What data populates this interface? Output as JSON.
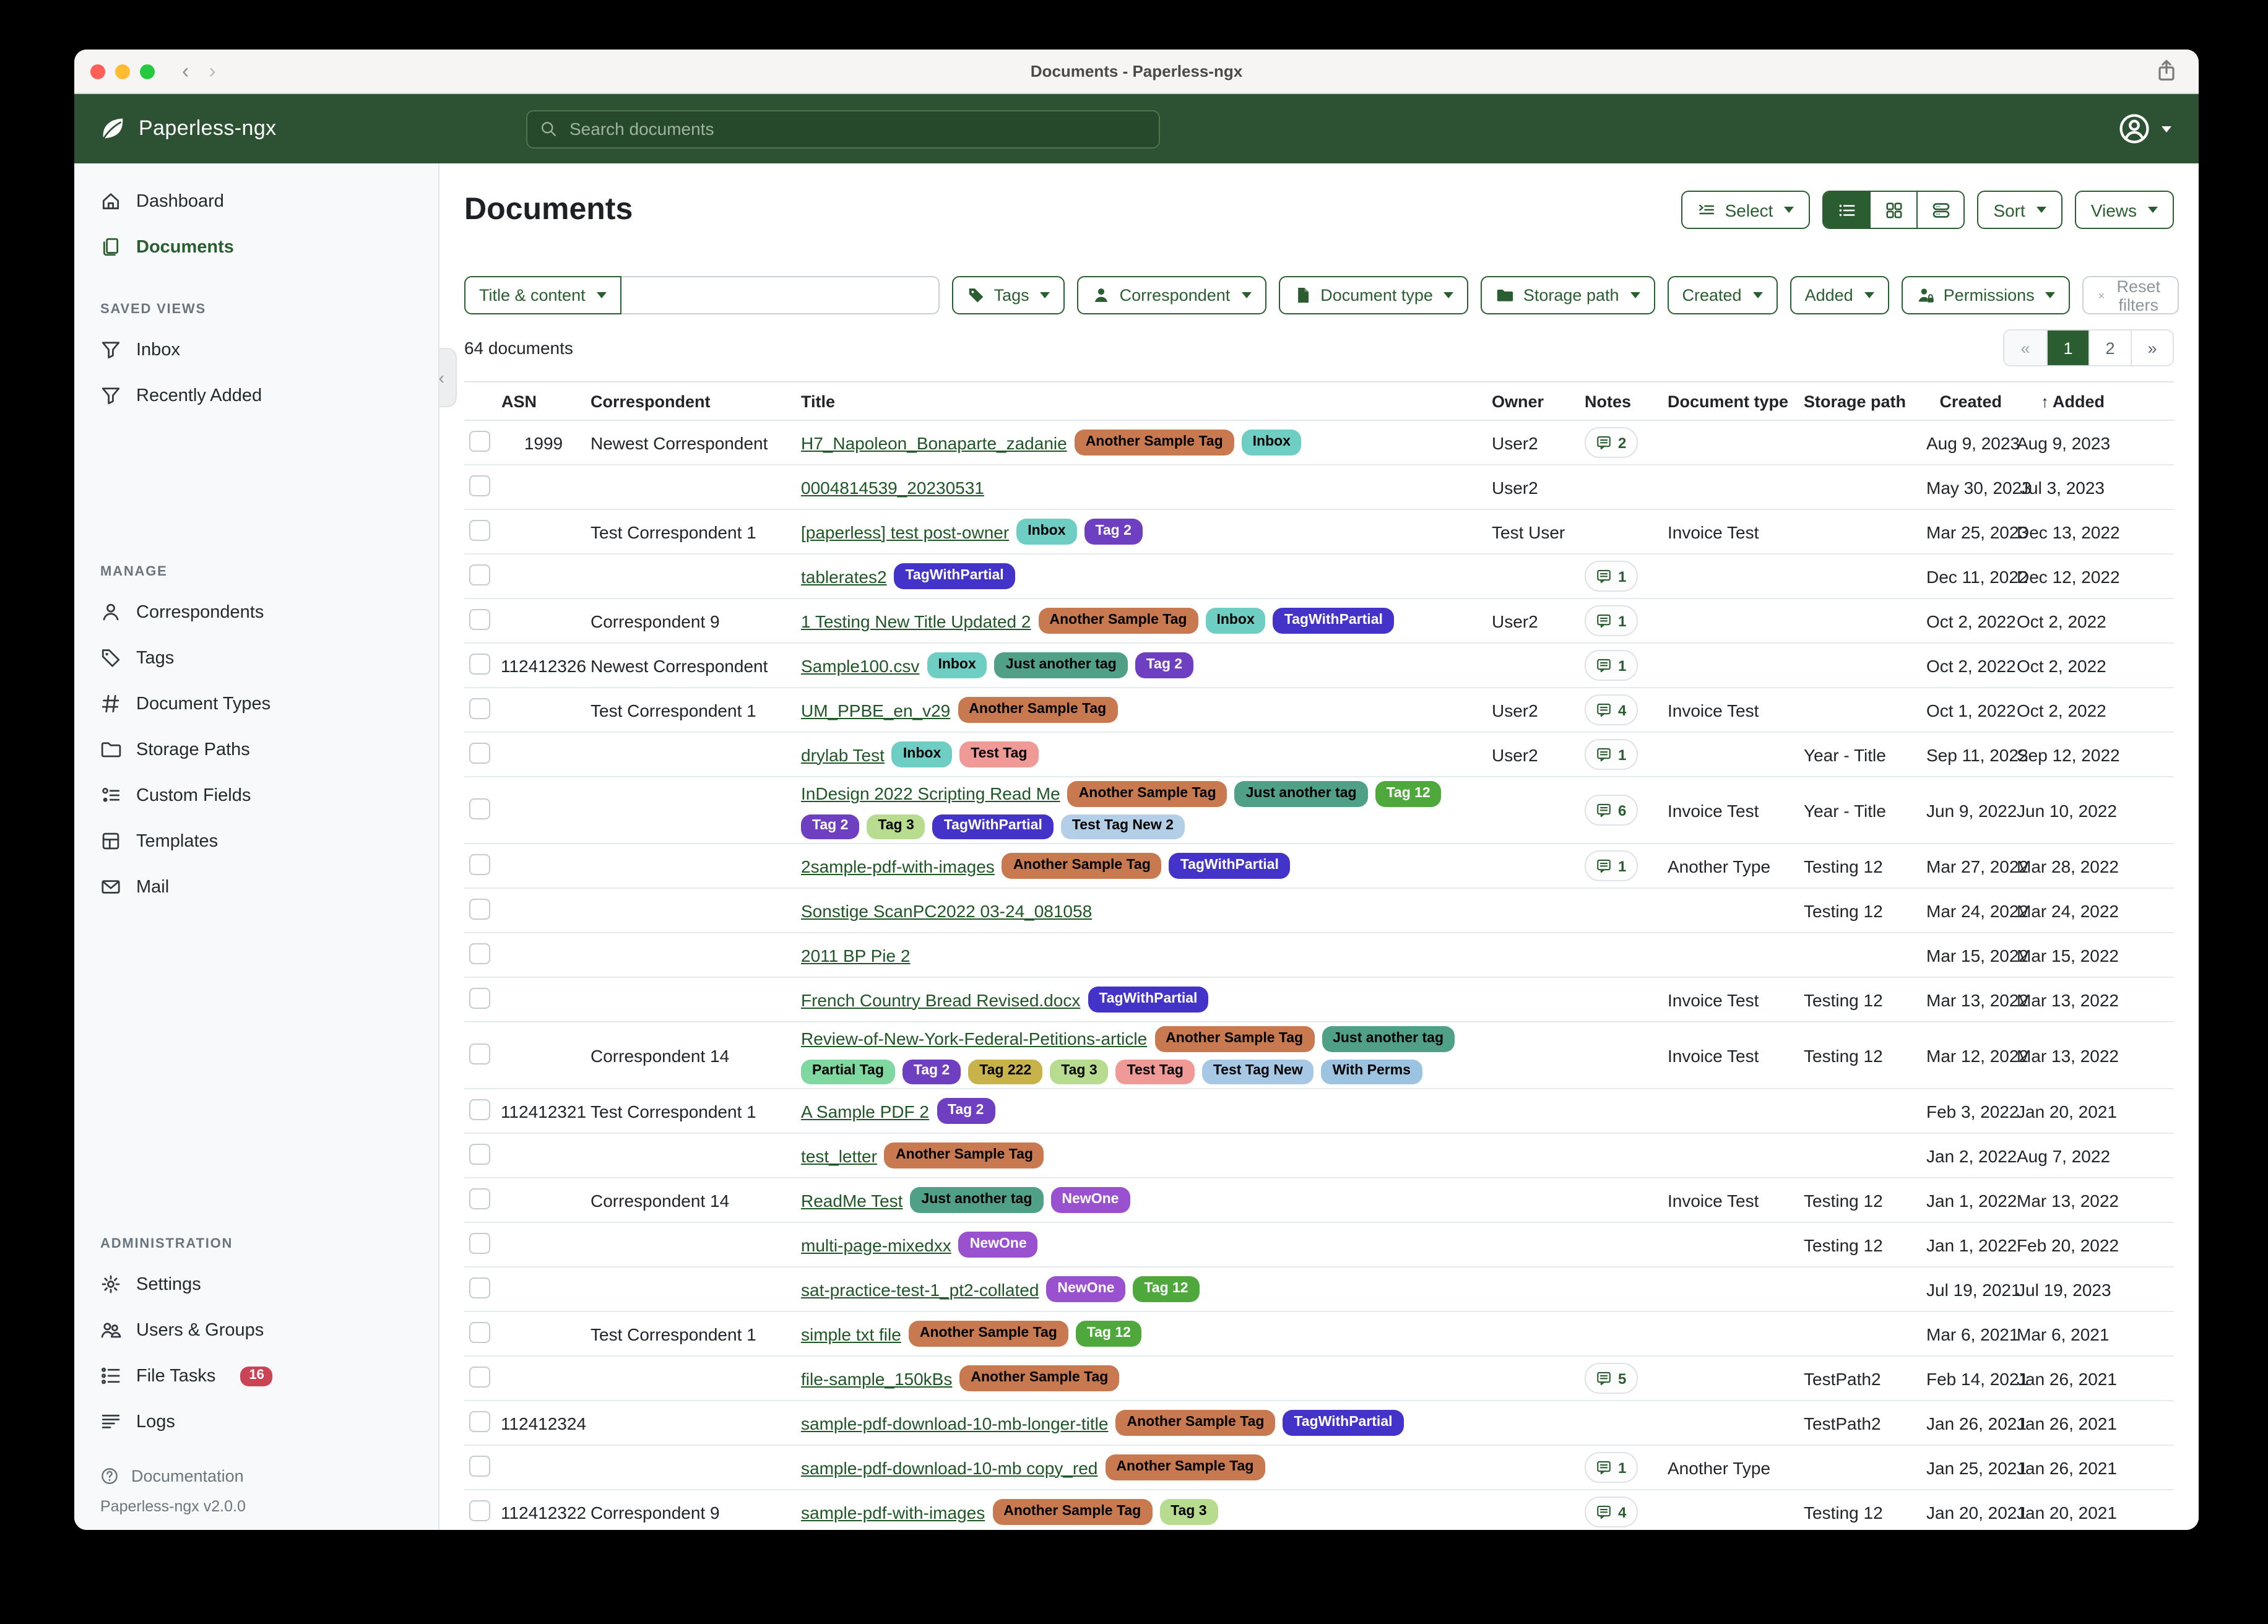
{
  "window": {
    "title": "Documents - Paperless-ngx"
  },
  "navbar": {
    "brand": "Paperless-ngx",
    "search_placeholder": "Search documents"
  },
  "sidebar": {
    "nav": [
      {
        "label": "Dashboard",
        "icon": "home-icon"
      },
      {
        "label": "Documents",
        "icon": "documents-icon",
        "active": true
      }
    ],
    "saved_views_label": "SAVED VIEWS",
    "saved_views": [
      {
        "label": "Inbox",
        "icon": "funnel-icon"
      },
      {
        "label": "Recently Added",
        "icon": "funnel-icon"
      }
    ],
    "manage_label": "MANAGE",
    "manage": [
      {
        "label": "Correspondents",
        "icon": "person-icon"
      },
      {
        "label": "Tags",
        "icon": "tag-icon"
      },
      {
        "label": "Document Types",
        "icon": "hash-icon"
      },
      {
        "label": "Storage Paths",
        "icon": "folder-icon"
      },
      {
        "label": "Custom Fields",
        "icon": "custom-fields-icon"
      },
      {
        "label": "Templates",
        "icon": "template-icon"
      },
      {
        "label": "Mail",
        "icon": "mail-icon"
      }
    ],
    "admin_label": "ADMINISTRATION",
    "admin": [
      {
        "label": "Settings",
        "icon": "gear-icon"
      },
      {
        "label": "Users & Groups",
        "icon": "users-icon"
      },
      {
        "label": "File Tasks",
        "icon": "tasks-icon",
        "badge": "16"
      },
      {
        "label": "Logs",
        "icon": "logs-icon"
      }
    ],
    "documentation": "Documentation",
    "version": "Paperless-ngx v2.0.0"
  },
  "page": {
    "title": "Documents",
    "count_label": "64 documents"
  },
  "toolbar": {
    "select_label": "Select",
    "sort_label": "Sort",
    "views_label": "Views",
    "view_modes": [
      {
        "name": "list-view",
        "icon": "view-list-icon",
        "active": true
      },
      {
        "name": "grid-view",
        "icon": "view-grid-icon",
        "active": false
      },
      {
        "name": "cards-view",
        "icon": "view-cards-icon",
        "active": false
      }
    ]
  },
  "filters": {
    "field_selector": "Title & content",
    "query_value": "",
    "buttons": [
      {
        "label": "Tags",
        "icon": "tag-filled-icon"
      },
      {
        "label": "Correspondent",
        "icon": "person-filled-icon"
      },
      {
        "label": "Document type",
        "icon": "file-filled-icon"
      },
      {
        "label": "Storage path",
        "icon": "folder-filled-icon"
      },
      {
        "label": "Created"
      },
      {
        "label": "Added"
      },
      {
        "label": "Permissions",
        "icon": "person-lock-icon"
      }
    ],
    "reset_label": "Reset filters"
  },
  "pagination": {
    "items": [
      {
        "label": "«",
        "type": "prev"
      },
      {
        "label": "1",
        "active": true
      },
      {
        "label": "2"
      },
      {
        "label": "»",
        "type": "next"
      }
    ]
  },
  "table": {
    "headers": {
      "asn": "ASN",
      "correspondent": "Correspondent",
      "title": "Title",
      "owner": "Owner",
      "notes": "Notes",
      "doctype": "Document type",
      "storage": "Storage path",
      "created": "Created",
      "added": "Added",
      "sort_arrow": "↑"
    },
    "tag_colors": {
      "Another Sample Tag": {
        "bg": "#c8794f",
        "fg": "#000000"
      },
      "Inbox": {
        "bg": "#6ecec4",
        "fg": "#000000"
      },
      "Tag 2": {
        "bg": "#6f3fc2",
        "fg": "#ffffff"
      },
      "TagWithPartial": {
        "bg": "#4333c9",
        "fg": "#ffffff"
      },
      "Just another tag": {
        "bg": "#4fa086",
        "fg": "#000000"
      },
      "Tag 12": {
        "bg": "#4ea83c",
        "fg": "#ffffff"
      },
      "Tag 3": {
        "bg": "#b8dc8f",
        "fg": "#000000"
      },
      "Test Tag": {
        "bg": "#ef9a97",
        "fg": "#000000"
      },
      "Test Tag New 2": {
        "bg": "#b3cfe8",
        "fg": "#000000"
      },
      "Partial Tag": {
        "bg": "#7fd8a0",
        "fg": "#000000"
      },
      "Tag 222": {
        "bg": "#c7b34a",
        "fg": "#000000"
      },
      "Test Tag New": {
        "bg": "#a7c8e5",
        "fg": "#000000"
      },
      "With Perms": {
        "bg": "#9cc3e0",
        "fg": "#000000"
      },
      "NewOne": {
        "bg": "#9a51cf",
        "fg": "#ffffff"
      }
    },
    "rows": [
      {
        "asn": "1999",
        "correspondent": "Newest Correspondent",
        "title": "H7_Napoleon_Bonaparte_zadanie",
        "tags": [
          "Another Sample Tag",
          "Inbox"
        ],
        "owner": "User2",
        "notes": 2,
        "doctype": "",
        "storage": "",
        "created": "Aug 9, 2023",
        "added": "Aug 9, 2023"
      },
      {
        "asn": "",
        "correspondent": "",
        "title": "0004814539_20230531",
        "tags": [],
        "owner": "User2",
        "notes": 0,
        "doctype": "",
        "storage": "",
        "created": "May 30, 2023",
        "added": "Jul 3, 2023"
      },
      {
        "asn": "",
        "correspondent": "Test Correspondent 1",
        "title": "[paperless] test post-owner",
        "tags": [
          "Inbox",
          "Tag 2"
        ],
        "owner": "Test User",
        "notes": 0,
        "doctype": "Invoice Test",
        "storage": "",
        "created": "Mar 25, 2023",
        "added": "Dec 13, 2022"
      },
      {
        "asn": "",
        "correspondent": "",
        "title": "tablerates2",
        "tags": [
          "TagWithPartial"
        ],
        "owner": "",
        "notes": 1,
        "doctype": "",
        "storage": "",
        "created": "Dec 11, 2022",
        "added": "Dec 12, 2022"
      },
      {
        "asn": "",
        "correspondent": "Correspondent 9",
        "title": "1 Testing New Title Updated 2",
        "tags": [
          "Another Sample Tag",
          "Inbox",
          "TagWithPartial"
        ],
        "owner": "User2",
        "notes": 1,
        "doctype": "",
        "storage": "",
        "created": "Oct 2, 2022",
        "added": "Oct 2, 2022"
      },
      {
        "asn": "112412326",
        "correspondent": "Newest Correspondent",
        "title": "Sample100.csv",
        "tags": [
          "Inbox",
          "Just another tag",
          "Tag 2"
        ],
        "owner": "",
        "notes": 1,
        "doctype": "",
        "storage": "",
        "created": "Oct 2, 2022",
        "added": "Oct 2, 2022"
      },
      {
        "asn": "",
        "correspondent": "Test Correspondent 1",
        "title": "UM_PPBE_en_v29",
        "tags": [
          "Another Sample Tag"
        ],
        "owner": "User2",
        "notes": 4,
        "doctype": "Invoice Test",
        "storage": "",
        "created": "Oct 1, 2022",
        "added": "Oct 2, 2022"
      },
      {
        "asn": "",
        "correspondent": "",
        "title": "drylab Test",
        "tags": [
          "Inbox",
          "Test Tag"
        ],
        "owner": "User2",
        "notes": 1,
        "doctype": "",
        "storage": "Year - Title",
        "created": "Sep 11, 2022",
        "added": "Sep 12, 2022"
      },
      {
        "asn": "",
        "correspondent": "",
        "title": "InDesign 2022 Scripting Read Me",
        "tags": [
          "Another Sample Tag",
          "Just another tag",
          "Tag 12",
          "Tag 2",
          "Tag 3",
          "TagWithPartial",
          "Test Tag New 2"
        ],
        "owner": "",
        "notes": 6,
        "doctype": "Invoice Test",
        "storage": "Year - Title",
        "created": "Jun 9, 2022",
        "added": "Jun 10, 2022"
      },
      {
        "asn": "",
        "correspondent": "",
        "title": "2sample-pdf-with-images",
        "tags": [
          "Another Sample Tag",
          "TagWithPartial"
        ],
        "owner": "",
        "notes": 1,
        "doctype": "Another Type",
        "storage": "Testing 12",
        "created": "Mar 27, 2022",
        "added": "Mar 28, 2022"
      },
      {
        "asn": "",
        "correspondent": "",
        "title": "Sonstige ScanPC2022 03-24_081058",
        "tags": [],
        "owner": "",
        "notes": 0,
        "doctype": "",
        "storage": "Testing 12",
        "created": "Mar 24, 2022",
        "added": "Mar 24, 2022"
      },
      {
        "asn": "",
        "correspondent": "",
        "title": "2011 BP Pie 2",
        "tags": [],
        "owner": "",
        "notes": 0,
        "doctype": "",
        "storage": "",
        "created": "Mar 15, 2022",
        "added": "Mar 15, 2022"
      },
      {
        "asn": "",
        "correspondent": "",
        "title": "French Country Bread Revised.docx",
        "tags": [
          "TagWithPartial"
        ],
        "owner": "",
        "notes": 0,
        "doctype": "Invoice Test",
        "storage": "Testing 12",
        "created": "Mar 13, 2022",
        "added": "Mar 13, 2022"
      },
      {
        "asn": "",
        "correspondent": "Correspondent 14",
        "title": "Review-of-New-York-Federal-Petitions-article",
        "tags": [
          "Another Sample Tag",
          "Just another tag",
          "Partial Tag",
          "Tag 2",
          "Tag 222",
          "Tag 3",
          "Test Tag",
          "Test Tag New",
          "With Perms"
        ],
        "owner": "",
        "notes": 0,
        "doctype": "Invoice Test",
        "storage": "Testing 12",
        "created": "Mar 12, 2022",
        "added": "Mar 13, 2022"
      },
      {
        "asn": "112412321",
        "correspondent": "Test Correspondent 1",
        "title": "A Sample PDF 2",
        "tags": [
          "Tag 2"
        ],
        "owner": "",
        "notes": 0,
        "doctype": "",
        "storage": "",
        "created": "Feb 3, 2022",
        "added": "Jan 20, 2021"
      },
      {
        "asn": "",
        "correspondent": "",
        "title": "test_letter",
        "tags": [
          "Another Sample Tag"
        ],
        "owner": "",
        "notes": 0,
        "doctype": "",
        "storage": "",
        "created": "Jan 2, 2022",
        "added": "Aug 7, 2022"
      },
      {
        "asn": "",
        "correspondent": "Correspondent 14",
        "title": "ReadMe Test",
        "tags": [
          "Just another tag",
          "NewOne"
        ],
        "owner": "",
        "notes": 0,
        "doctype": "Invoice Test",
        "storage": "Testing 12",
        "created": "Jan 1, 2022",
        "added": "Mar 13, 2022"
      },
      {
        "asn": "",
        "correspondent": "",
        "title": "multi-page-mixedxx",
        "tags": [
          "NewOne"
        ],
        "owner": "",
        "notes": 0,
        "doctype": "",
        "storage": "Testing 12",
        "created": "Jan 1, 2022",
        "added": "Feb 20, 2022"
      },
      {
        "asn": "",
        "correspondent": "",
        "title": "sat-practice-test-1_pt2-collated",
        "tags": [
          "NewOne",
          "Tag 12"
        ],
        "owner": "",
        "notes": 0,
        "doctype": "",
        "storage": "",
        "created": "Jul 19, 2021",
        "added": "Jul 19, 2023"
      },
      {
        "asn": "",
        "correspondent": "Test Correspondent 1",
        "title": "simple txt file",
        "tags": [
          "Another Sample Tag",
          "Tag 12"
        ],
        "owner": "",
        "notes": 0,
        "doctype": "",
        "storage": "",
        "created": "Mar 6, 2021",
        "added": "Mar 6, 2021"
      },
      {
        "asn": "",
        "correspondent": "",
        "title": "file-sample_150kBs",
        "tags": [
          "Another Sample Tag"
        ],
        "owner": "",
        "notes": 5,
        "doctype": "",
        "storage": "TestPath2",
        "created": "Feb 14, 2021",
        "added": "Jan 26, 2021"
      },
      {
        "asn": "112412324",
        "correspondent": "",
        "title": "sample-pdf-download-10-mb-longer-title",
        "tags": [
          "Another Sample Tag",
          "TagWithPartial"
        ],
        "owner": "",
        "notes": 0,
        "doctype": "",
        "storage": "TestPath2",
        "created": "Jan 26, 2021",
        "added": "Jan 26, 2021"
      },
      {
        "asn": "",
        "correspondent": "",
        "title": "sample-pdf-download-10-mb copy_red",
        "tags": [
          "Another Sample Tag"
        ],
        "owner": "",
        "notes": 1,
        "doctype": "Another Type",
        "storage": "",
        "created": "Jan 25, 2021",
        "added": "Jan 26, 2021"
      },
      {
        "asn": "112412322",
        "correspondent": "Correspondent 9",
        "title": "sample-pdf-with-images",
        "tags": [
          "Another Sample Tag",
          "Tag 3"
        ],
        "owner": "",
        "notes": 4,
        "doctype": "",
        "storage": "Testing 12",
        "created": "Jan 20, 2021",
        "added": "Jan 20, 2021"
      }
    ]
  }
}
